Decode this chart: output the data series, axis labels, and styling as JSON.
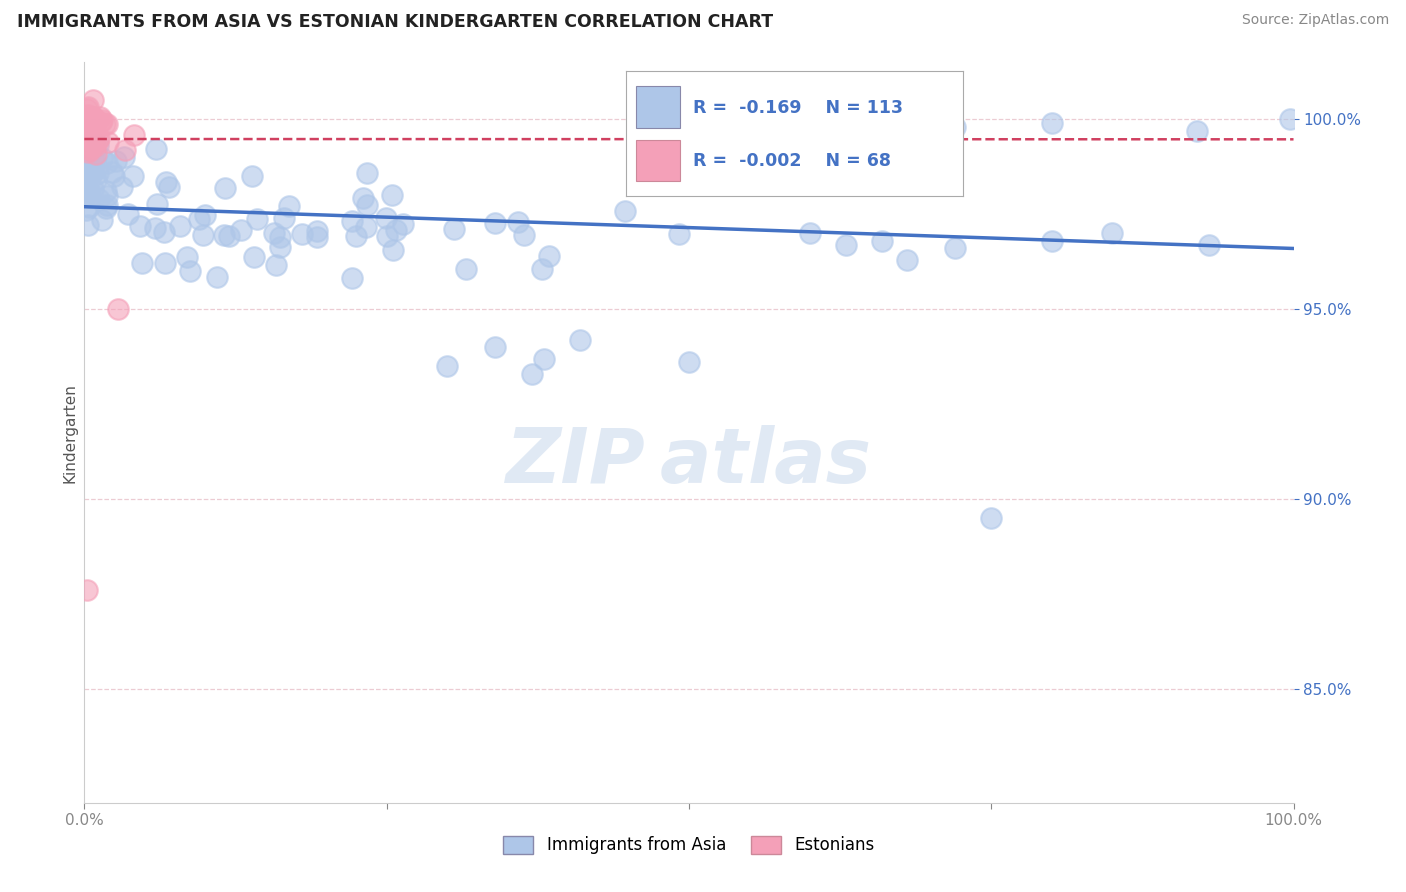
{
  "title": "IMMIGRANTS FROM ASIA VS ESTONIAN KINDERGARTEN CORRELATION CHART",
  "source_text": "Source: ZipAtlas.com",
  "ylabel": "Kindergarten",
  "legend_label_blue": "Immigrants from Asia",
  "legend_label_pink": "Estonians",
  "R_blue": -0.169,
  "N_blue": 113,
  "R_pink": -0.002,
  "N_pink": 68,
  "blue_color": "#aec6e8",
  "blue_line_color": "#4472c4",
  "pink_color": "#f4a0b8",
  "pink_line_color": "#d04060",
  "xmin": 0.0,
  "xmax": 1.0,
  "ymin": 0.82,
  "ymax": 1.015,
  "yticks": [
    0.85,
    0.9,
    0.95,
    1.0
  ],
  "ytick_labels": [
    "85.0%",
    "90.0%",
    "95.0%",
    "100.0%"
  ],
  "xtick_labels": [
    "0.0%",
    "",
    "",
    "",
    "100.0%"
  ],
  "watermark_text": "ZIPatlas"
}
